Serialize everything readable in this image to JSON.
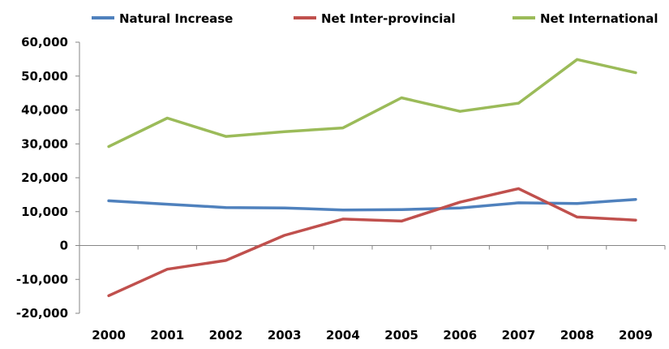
{
  "chart_data": {
    "type": "line",
    "title": "",
    "xlabel": "",
    "ylabel": "",
    "categories": [
      "2000",
      "2001",
      "2002",
      "2003",
      "2004",
      "2005",
      "2006",
      "2007",
      "2008",
      "2009"
    ],
    "ylim": [
      -20000,
      60000
    ],
    "yticks": [
      -20000,
      -10000,
      0,
      10000,
      20000,
      30000,
      40000,
      50000,
      60000
    ],
    "ytick_labels": [
      "-20,000",
      "-10,000",
      "0",
      "10,000",
      "20,000",
      "30,000",
      "40,000",
      "50,000",
      "60,000"
    ],
    "grid": false,
    "legend_position": "top",
    "series": [
      {
        "name": "Natural Increase",
        "color": "#4F81BD",
        "values": [
          13200,
          12200,
          11200,
          11100,
          10500,
          10600,
          11100,
          12600,
          12400,
          13600
        ]
      },
      {
        "name": "Net Inter-provincial",
        "color": "#C0504D",
        "values": [
          -14800,
          -7000,
          -4400,
          3000,
          7800,
          7200,
          12800,
          16800,
          8400,
          7500
        ]
      },
      {
        "name": "Net International",
        "color": "#9BBB59",
        "values": [
          29200,
          37600,
          32200,
          33600,
          34700,
          43600,
          39600,
          42000,
          54900,
          51000
        ]
      }
    ]
  }
}
